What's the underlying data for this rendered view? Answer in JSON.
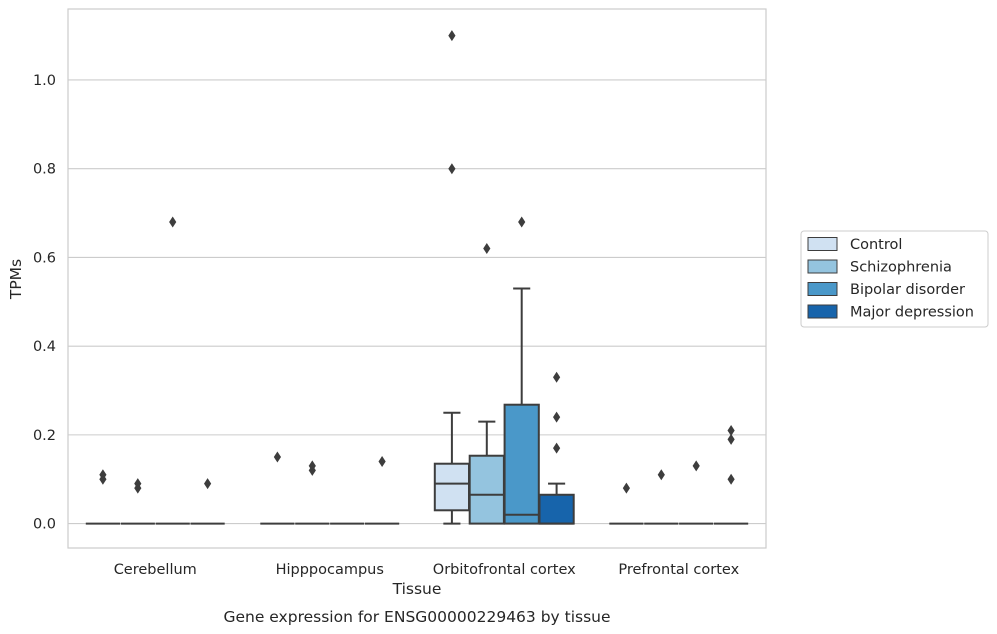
{
  "chart_data": {
    "type": "box",
    "title": "Gene expression for ENSG00000229463 by tissue",
    "xlabel": "Tissue",
    "ylabel": "TPMs",
    "ylim": [
      -0.055,
      1.16
    ],
    "yticks": [
      0.0,
      0.2,
      0.4,
      0.6,
      0.8,
      1.0
    ],
    "ytick_labels": [
      "0.0",
      "0.2",
      "0.4",
      "0.6",
      "0.8",
      "1.0"
    ],
    "grid": "horizontal",
    "legend_placement": "outside-right",
    "categories": [
      "Cerebellum",
      "Hipppocampus",
      "Orbitofrontal cortex",
      "Prefrontal cortex"
    ],
    "series": [
      {
        "name": "Control",
        "color": "#d0e1f2",
        "boxes": [
          {
            "q1": 0,
            "median": 0,
            "q3": 0,
            "whisker_low": 0,
            "whisker_high": 0,
            "outliers": [
              0.1,
              0.11
            ]
          },
          {
            "q1": 0,
            "median": 0,
            "q3": 0,
            "whisker_low": 0,
            "whisker_high": 0,
            "outliers": [
              0.15
            ]
          },
          {
            "q1": 0.03,
            "median": 0.09,
            "q3": 0.135,
            "whisker_low": 0,
            "whisker_high": 0.25,
            "outliers": [
              0.8,
              1.1
            ]
          },
          {
            "q1": 0,
            "median": 0,
            "q3": 0,
            "whisker_low": 0,
            "whisker_high": 0,
            "outliers": [
              0.08
            ]
          }
        ]
      },
      {
        "name": "Schizophrenia",
        "color": "#94c4df",
        "boxes": [
          {
            "q1": 0,
            "median": 0,
            "q3": 0,
            "whisker_low": 0,
            "whisker_high": 0,
            "outliers": [
              0.08,
              0.09
            ]
          },
          {
            "q1": 0,
            "median": 0,
            "q3": 0,
            "whisker_low": 0,
            "whisker_high": 0,
            "outliers": [
              0.12,
              0.13
            ]
          },
          {
            "q1": 0,
            "median": 0.065,
            "q3": 0.153,
            "whisker_low": 0,
            "whisker_high": 0.23,
            "outliers": [
              0.62
            ]
          },
          {
            "q1": 0,
            "median": 0,
            "q3": 0,
            "whisker_low": 0,
            "whisker_high": 0,
            "outliers": [
              0.11
            ]
          }
        ]
      },
      {
        "name": "Bipolar disorder",
        "color": "#4a98c9",
        "boxes": [
          {
            "q1": 0,
            "median": 0,
            "q3": 0,
            "whisker_low": 0,
            "whisker_high": 0,
            "outliers": [
              0.68
            ]
          },
          {
            "q1": 0,
            "median": 0,
            "q3": 0,
            "whisker_low": 0,
            "whisker_high": 0,
            "outliers": []
          },
          {
            "q1": 0,
            "median": 0.02,
            "q3": 0.268,
            "whisker_low": 0,
            "whisker_high": 0.53,
            "outliers": [
              0.68
            ]
          },
          {
            "q1": 0,
            "median": 0,
            "q3": 0,
            "whisker_low": 0,
            "whisker_high": 0,
            "outliers": [
              0.13
            ]
          }
        ]
      },
      {
        "name": "Major depression",
        "color": "#1764ab",
        "boxes": [
          {
            "q1": 0,
            "median": 0,
            "q3": 0,
            "whisker_low": 0,
            "whisker_high": 0,
            "outliers": [
              0.09
            ]
          },
          {
            "q1": 0,
            "median": 0,
            "q3": 0,
            "whisker_low": 0,
            "whisker_high": 0,
            "outliers": [
              0.14
            ]
          },
          {
            "q1": 0,
            "median": 0,
            "q3": 0.065,
            "whisker_low": 0,
            "whisker_high": 0.09,
            "outliers": [
              0.17,
              0.24,
              0.33
            ]
          },
          {
            "q1": 0,
            "median": 0,
            "q3": 0,
            "whisker_low": 0,
            "whisker_high": 0,
            "outliers": [
              0.1,
              0.19,
              0.21
            ]
          }
        ]
      }
    ]
  }
}
